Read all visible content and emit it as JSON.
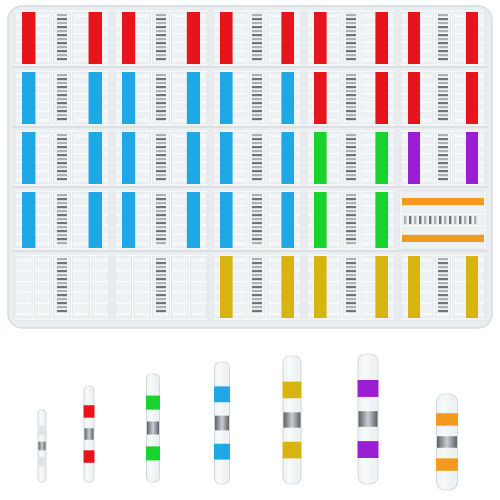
{
  "colors": {
    "red": "#e8141c",
    "blue": "#1ea8e6",
    "green": "#18d22e",
    "purple": "#9a1ed2",
    "yellow": "#d8b410",
    "orange": "#f29a1e",
    "clear": "#eef2f4",
    "tray": "#eaeef0",
    "solder": "#8a8f94"
  },
  "tray": {
    "compartments": [
      [
        "red",
        "red",
        "red",
        "red",
        "red"
      ],
      [
        "blue",
        "blue",
        "blue",
        "red",
        "red"
      ],
      [
        "blue",
        "blue",
        "blue",
        "green",
        "purple"
      ],
      [
        "blue",
        "blue",
        "blue",
        "green",
        "orange-horizontal"
      ],
      [
        "clear",
        "clear",
        "yellow",
        "yellow",
        "yellow"
      ]
    ]
  },
  "loose_connectors": [
    "clear",
    "red",
    "green",
    "blue",
    "yellow",
    "purple",
    "orange"
  ]
}
